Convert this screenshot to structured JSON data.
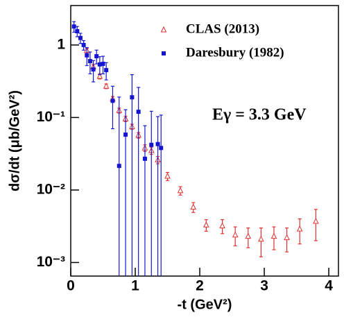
{
  "chart_data": {
    "type": "scatter",
    "xlabel": "-t (GeV²)",
    "ylabel": "dσ/dt (μb/GeV²)",
    "annotation": "Eγ = 3.3 GeV",
    "xlim": [
      0,
      4.15
    ],
    "xticks": [
      0,
      1,
      2,
      3,
      4
    ],
    "ylim": [
      0.00065,
      3.5
    ],
    "log_y": true,
    "yticks": [
      {
        "value": 0.001,
        "label": "10⁻³"
      },
      {
        "value": 0.01,
        "label": "10⁻²"
      },
      {
        "value": 0.1,
        "label": "10⁻¹"
      },
      1
    ],
    "legend": "upper right",
    "series": [
      {
        "name": "CLAS (2013)",
        "color": "#e03030",
        "marker": "triangle-open",
        "x": [
          0.25,
          0.35,
          0.45,
          0.55,
          0.65,
          0.75,
          0.85,
          0.95,
          1.05,
          1.15,
          1.25,
          1.35,
          1.5,
          1.7,
          1.9,
          2.1,
          2.35,
          2.55,
          2.75,
          2.95,
          3.15,
          3.35,
          3.55,
          3.8
        ],
        "values": [
          0.84,
          0.5,
          0.37,
          0.27,
          0.18,
          0.125,
          0.096,
          0.075,
          0.057,
          0.038,
          0.035,
          0.026,
          0.0155,
          0.0098,
          0.0058,
          0.0033,
          0.0032,
          0.0024,
          0.0023,
          0.0021,
          0.0023,
          0.0022,
          0.0029,
          0.0037
        ],
        "errors": [
          0.06,
          0.04,
          0.03,
          0.02,
          0.015,
          0.01,
          0.008,
          0.006,
          0.005,
          0.004,
          0.004,
          0.003,
          0.002,
          0.0013,
          0.0009,
          0.0006,
          0.0007,
          0.0007,
          0.0007,
          0.0009,
          0.0008,
          0.0008,
          0.0011,
          0.0017
        ]
      },
      {
        "name": "Daresbury (1982)",
        "color": "#1515d0",
        "marker": "square",
        "x": [
          0.05,
          0.1,
          0.15,
          0.2,
          0.25,
          0.3,
          0.35,
          0.4,
          0.45,
          0.5,
          0.55,
          0.65,
          0.75,
          0.85,
          0.95,
          1.05,
          1.15,
          1.25,
          1.35,
          1.4
        ],
        "values": [
          1.8,
          1.55,
          1.25,
          1.0,
          0.72,
          0.6,
          0.46,
          0.7,
          0.54,
          0.55,
          0.45,
          0.17,
          0.0215,
          0.058,
          0.19,
          0.12,
          0.027,
          0.042,
          0.043,
          0.038
        ],
        "errors": [
          0.3,
          0.25,
          0.2,
          0.15,
          0.2,
          0.2,
          0.15,
          0.15,
          0.15,
          0.15,
          0.12,
          0.1,
          0.17,
          0.07,
          0.2,
          0.14,
          0.05,
          0.08,
          0.06,
          0.07
        ]
      }
    ]
  }
}
